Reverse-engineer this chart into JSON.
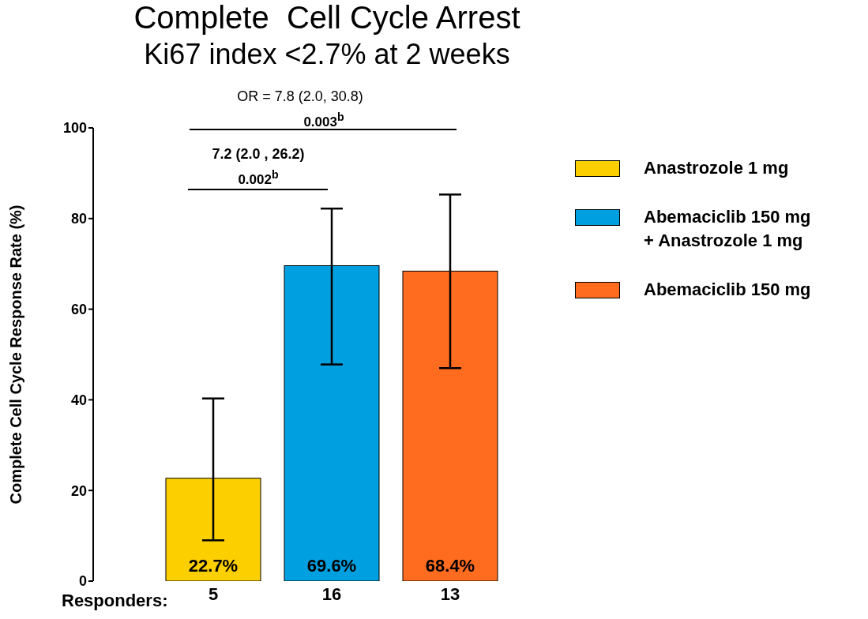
{
  "chart_data": {
    "type": "bar",
    "title": "Complete  Cell Cycle Arrest",
    "subtitle": "Ki67 index <2.7% at 2 weeks",
    "ylabel": "Complete Cell Cycle Response Rate (%)",
    "xlabel": "Responders:",
    "categories": [
      "5",
      "16",
      "13"
    ],
    "stacked": true,
    "series": [
      {
        "name": "Anastrozole 1 mg",
        "color": "#fccf00",
        "values": [
          22.7,
          null,
          null
        ],
        "errors": [
          [
            9,
            40.3
          ],
          null,
          null
        ],
        "value_labels": [
          "22.7%",
          null,
          null
        ]
      },
      {
        "name": "Abemaciclib  150 mg\n+ Anastrozole 1 mg",
        "color": "#009fdf",
        "values": [
          null,
          69.6,
          null
        ],
        "errors": [
          null,
          [
            47.8,
            82.2
          ],
          null
        ],
        "value_labels": [
          null,
          "69.6%",
          null
        ]
      },
      {
        "name": "Abemaciclib 150 mg",
        "color": "#ff6c1f",
        "values": [
          null,
          null,
          68.4
        ],
        "errors": [
          null,
          null,
          [
            47,
            85.3
          ]
        ],
        "value_labels": [
          null,
          null,
          "68.4%"
        ]
      }
    ],
    "ylim": [
      0,
      100
    ],
    "yticks": [
      0,
      20,
      40,
      60,
      80,
      100
    ],
    "grid": false,
    "legend": "right",
    "annotations": [
      "OR = 7.8 (2.0, 30.8)",
      "0.003$^{b}$",
      "7.2 (2.0 , 26.2)",
      "0.002$^{b}$"
    ]
  }
}
